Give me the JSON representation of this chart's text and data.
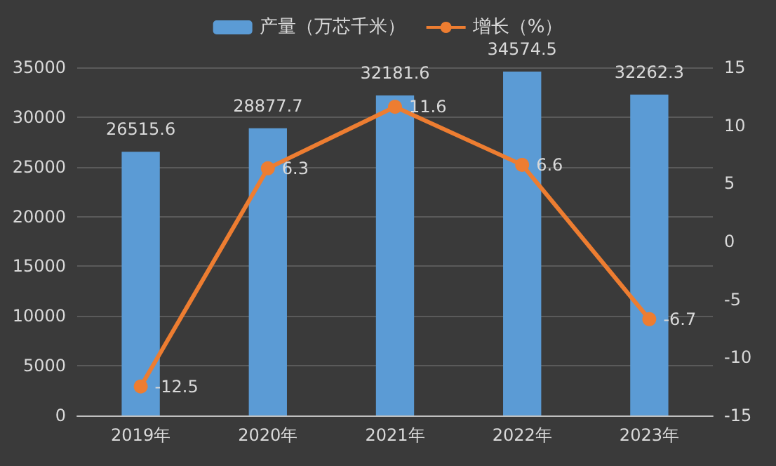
{
  "chart_data": {
    "type": "bar",
    "categories": [
      "2019年",
      "2020年",
      "2021年",
      "2022年",
      "2023年"
    ],
    "series": [
      {
        "name": "产量（万芯千米）",
        "color": "#5b9bd5",
        "values": [
          26515.6,
          28877.7,
          32181.6,
          34574.5,
          32262.3
        ]
      },
      {
        "name": "增长（%）",
        "type": "line",
        "axis": "y2",
        "color": "#ed7d31",
        "values": [
          -12.5,
          6.3,
          11.6,
          6.6,
          -6.7
        ]
      }
    ],
    "ylim": [
      0,
      35000
    ],
    "yticks": [
      0,
      5000,
      10000,
      15000,
      20000,
      25000,
      30000,
      35000
    ],
    "y2lim": [
      -15,
      15
    ],
    "y2ticks": [
      -15,
      -10,
      -5,
      0,
      5,
      10,
      15
    ],
    "data_labels": true,
    "grid": "y",
    "legend": "top",
    "marker": "circle"
  }
}
